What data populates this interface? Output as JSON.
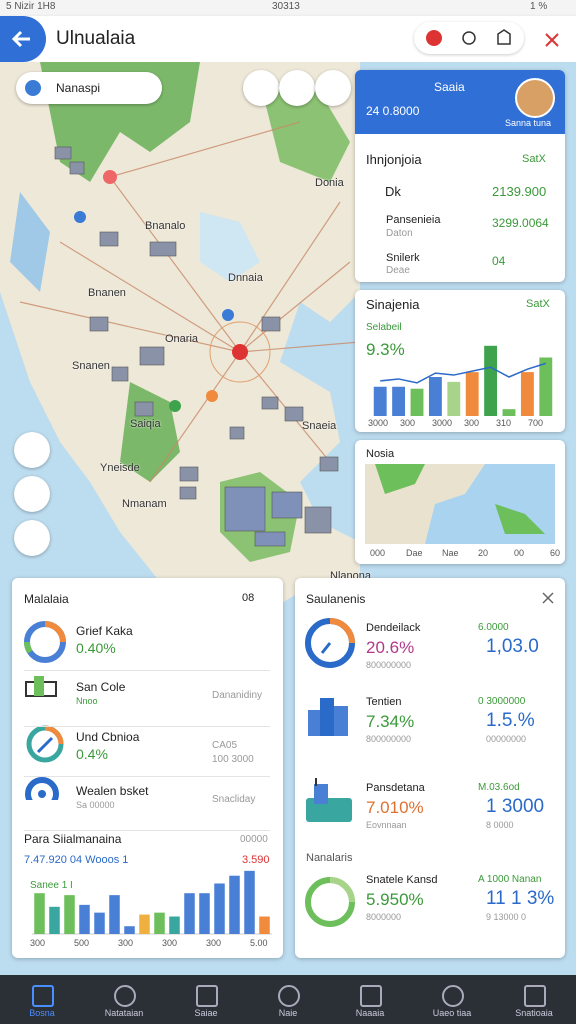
{
  "status": {
    "left": "5 Nizir 1H8",
    "center": "30313",
    "right": "1 %"
  },
  "app_bar": {
    "title": "Ulnualaia"
  },
  "map": {
    "search": "Nanaspi",
    "labels": [
      "Donia",
      "Bnanalo",
      "Bnanen",
      "Dnnaia",
      "Onaria",
      "Snanen",
      "Saiqia",
      "Snaeia",
      "Yneisde",
      "Nmanam",
      "Nlanona"
    ]
  },
  "profile_card": {
    "title": "Saaia",
    "subtitle": "24 0.8000",
    "user": "Sanna tuna"
  },
  "summary_card": {
    "title": "Ihnjonjoia",
    "action": "SatX",
    "rows": [
      {
        "label": "Dk",
        "sub": "",
        "value": "2139.900"
      },
      {
        "label": "Pansenieia",
        "sub": "Daton",
        "value": "3299.0064"
      },
      {
        "label": "Snilerk",
        "sub": "Deae",
        "value": "04"
      }
    ]
  },
  "chart_card": {
    "title": "Sinajenia",
    "action": "SatX",
    "metric_label": "Selabeil",
    "metric": "9.3%",
    "values": [
      30,
      30,
      28,
      40,
      35,
      45,
      72,
      7,
      45,
      60
    ],
    "colors": [
      "#4a7fd6",
      "#4a7fd6",
      "#6cbf5a",
      "#4a7fd6",
      "#a8d48a",
      "#f08a3c",
      "#3fa34d",
      "#6cbf5a",
      "#f08a3c",
      "#6cbf5a"
    ],
    "trend": [
      36,
      38,
      34,
      44,
      42,
      46,
      50,
      40,
      48,
      54
    ],
    "ylim": [
      0,
      80
    ],
    "x_labels": [
      "3000",
      "300",
      "3000",
      "300",
      "310",
      "700"
    ]
  },
  "map_card": {
    "title": "Nosia",
    "x_labels": [
      "000",
      "Dae",
      "Nae",
      "20",
      "00",
      "60"
    ]
  },
  "left_card": {
    "title": "Malalaia",
    "badge": "08",
    "rows": [
      {
        "title": "Grief Kaka",
        "value": "0.40%",
        "right": "",
        "right2": ""
      },
      {
        "title": "San Cole",
        "value": "Nnoo",
        "right": "Dananidiny",
        "right2": ""
      },
      {
        "title": "Und Cbnioa",
        "value": "0.4%",
        "right": "CA05",
        "right2": "100 3000"
      },
      {
        "title": "Wealen bsket",
        "value": "Sa 00000",
        "right": "Snacliday",
        "right2": ""
      }
    ],
    "chart": {
      "title": "Para Siialmanaina",
      "corner": "00000",
      "line1": "7.47.920 04 Wooos 1",
      "line1_right": "3.590",
      "legend": "Sanee 1 I",
      "values": [
        42,
        28,
        40,
        30,
        22,
        40,
        8,
        20,
        22,
        18,
        42,
        42,
        52,
        60,
        65,
        18
      ],
      "colors": [
        "#6cbf5a",
        "#3aa6a0",
        "#6cbf5a",
        "#4a7fd6",
        "#4a7fd6",
        "#4a7fd6",
        "#4a7fd6",
        "#f0b040",
        "#6cbf5a",
        "#3aa6a0",
        "#4a7fd6",
        "#4a7fd6",
        "#4a7fd6",
        "#4a7fd6",
        "#4a7fd6",
        "#f08a3c"
      ],
      "ylim": [
        0,
        70
      ],
      "x_labels": [
        "300",
        "500",
        "300",
        "300",
        "300",
        "5.00"
      ]
    }
  },
  "right_card": {
    "title": "Saulanenis",
    "section": "Nanalaris",
    "rows": [
      {
        "title": "Dendeilack",
        "value": "20.6%",
        "sub": "800000000",
        "right": "6.0000",
        "right_big": "1,03.0",
        "right_sub": ""
      },
      {
        "title": "Tentien",
        "value": "7.34%",
        "sub": "800000000",
        "right": "0 3000000",
        "right_big": "1.5.%",
        "right_sub": "00000000"
      },
      {
        "title": "Pansdetana",
        "value": "7.010%",
        "sub": "Eovnnaan",
        "right": "M.03.6od",
        "right_big": "1 3000",
        "right_sub": "8 0000"
      },
      {
        "title": "Snatele Kansd",
        "value": "5.950%",
        "sub": "8000000",
        "right": "A 1000 Nanan",
        "right_big": "11 1 3%",
        "right_sub": "9 13000 0"
      }
    ]
  },
  "nav": [
    "Bosna",
    "Natataian",
    "Saiae",
    "Naie",
    "Naaaia",
    "Uaeo tiaa",
    "Snatioaia"
  ]
}
